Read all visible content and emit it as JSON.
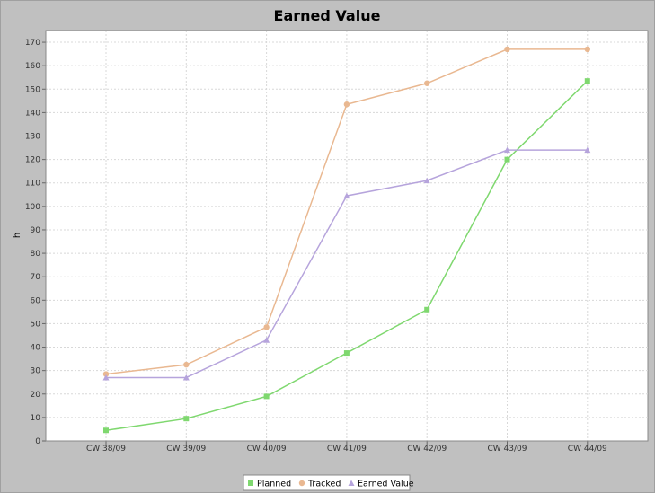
{
  "chart_data": {
    "type": "line",
    "title": "Earned Value",
    "xlabel": "",
    "ylabel": "h",
    "ylim": [
      0,
      175
    ],
    "y_ticks": [
      0,
      10,
      20,
      30,
      40,
      50,
      60,
      70,
      80,
      90,
      100,
      110,
      120,
      130,
      140,
      150,
      160,
      170
    ],
    "categories": [
      "CW 38/09",
      "CW 39/09",
      "CW 40/09",
      "CW 41/09",
      "CW 42/09",
      "CW 43/09",
      "CW 44/09"
    ],
    "series": [
      {
        "name": "Planned",
        "color": "#7fd86f",
        "marker": "square",
        "values": [
          4.5,
          9.5,
          19,
          37.5,
          56,
          120,
          153.5
        ]
      },
      {
        "name": "Tracked",
        "color": "#e9b891",
        "marker": "circle",
        "values": [
          28.5,
          32.5,
          48.5,
          143.5,
          152.5,
          167,
          167
        ]
      },
      {
        "name": "Earned Value",
        "color": "#b6a4dc",
        "marker": "triangle",
        "values": [
          27,
          27,
          43,
          104.5,
          111,
          124,
          124
        ]
      }
    ],
    "grid": true,
    "legend_position": "bottom-center"
  }
}
